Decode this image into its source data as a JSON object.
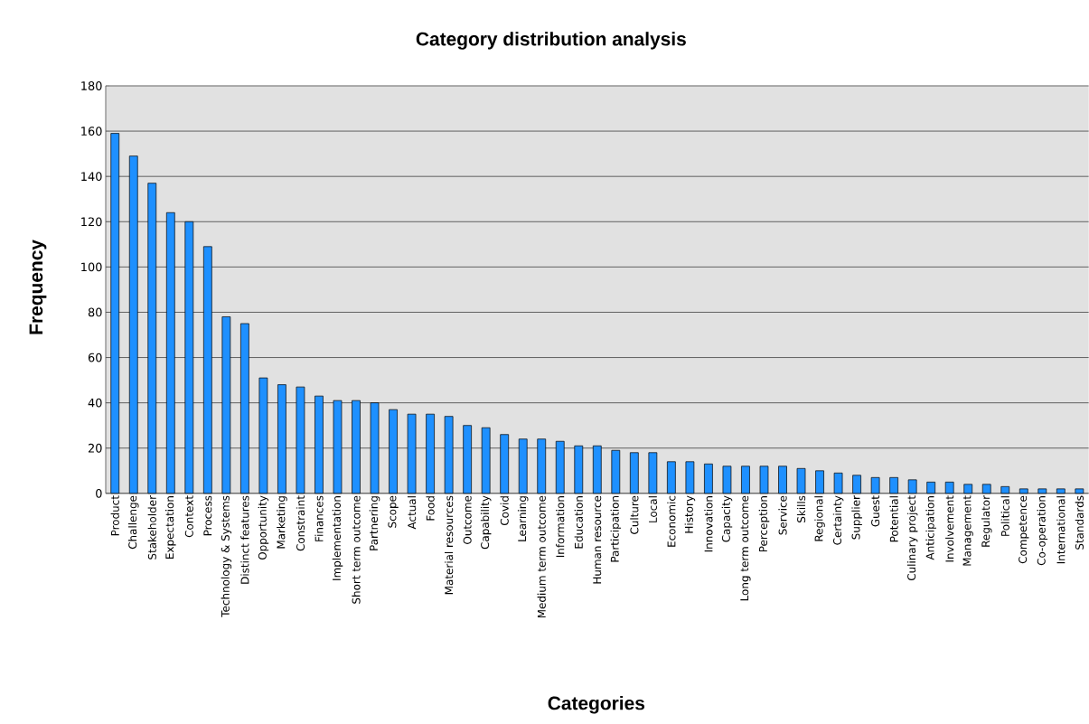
{
  "chart_data": {
    "type": "bar",
    "title": "Category distribution analysis",
    "xlabel": "Categories",
    "ylabel": "Frequency",
    "categories": [
      "Product",
      "Challenge",
      "Stakeholder",
      "Expectation",
      "Context",
      "Process",
      "Technology & Systems",
      "Distinct features",
      "Opportunity",
      "Marketing",
      "Constraint",
      "Finances",
      "Implementation",
      "Short term outcome",
      "Partnering",
      "Scope",
      "Actual",
      "Food",
      "Material resources",
      "Outcome",
      "Capability",
      "Covid",
      "Learning",
      "Medium term outcome",
      "Information",
      "Education",
      "Human resource",
      "Participation",
      "Culture",
      "Local",
      "Economic",
      "History",
      "Innovation",
      "Capacity",
      "Long term outcome",
      "Perception",
      "Service",
      "Skills",
      "Regional",
      "Certainty",
      "Supplier",
      "Guest",
      "Potential",
      "Culinary project",
      "Anticipation",
      "Involvement",
      "Management",
      "Regulator",
      "Political",
      "Competence",
      "Co-operation",
      "International",
      "Standards"
    ],
    "values": [
      159,
      149,
      137,
      124,
      120,
      109,
      78,
      75,
      51,
      48,
      47,
      43,
      41,
      41,
      40,
      37,
      35,
      35,
      34,
      30,
      29,
      26,
      24,
      24,
      23,
      21,
      21,
      19,
      18,
      18,
      14,
      14,
      13,
      12,
      12,
      12,
      12,
      11,
      10,
      9,
      8,
      7,
      7,
      6,
      5,
      5,
      4,
      4,
      3,
      2,
      2,
      2,
      2
    ],
    "color": "#1e90ff",
    "ylim": [
      0,
      180
    ],
    "yticks": [
      0,
      20,
      40,
      60,
      80,
      100,
      120,
      140,
      160,
      180
    ],
    "grid": "y"
  }
}
